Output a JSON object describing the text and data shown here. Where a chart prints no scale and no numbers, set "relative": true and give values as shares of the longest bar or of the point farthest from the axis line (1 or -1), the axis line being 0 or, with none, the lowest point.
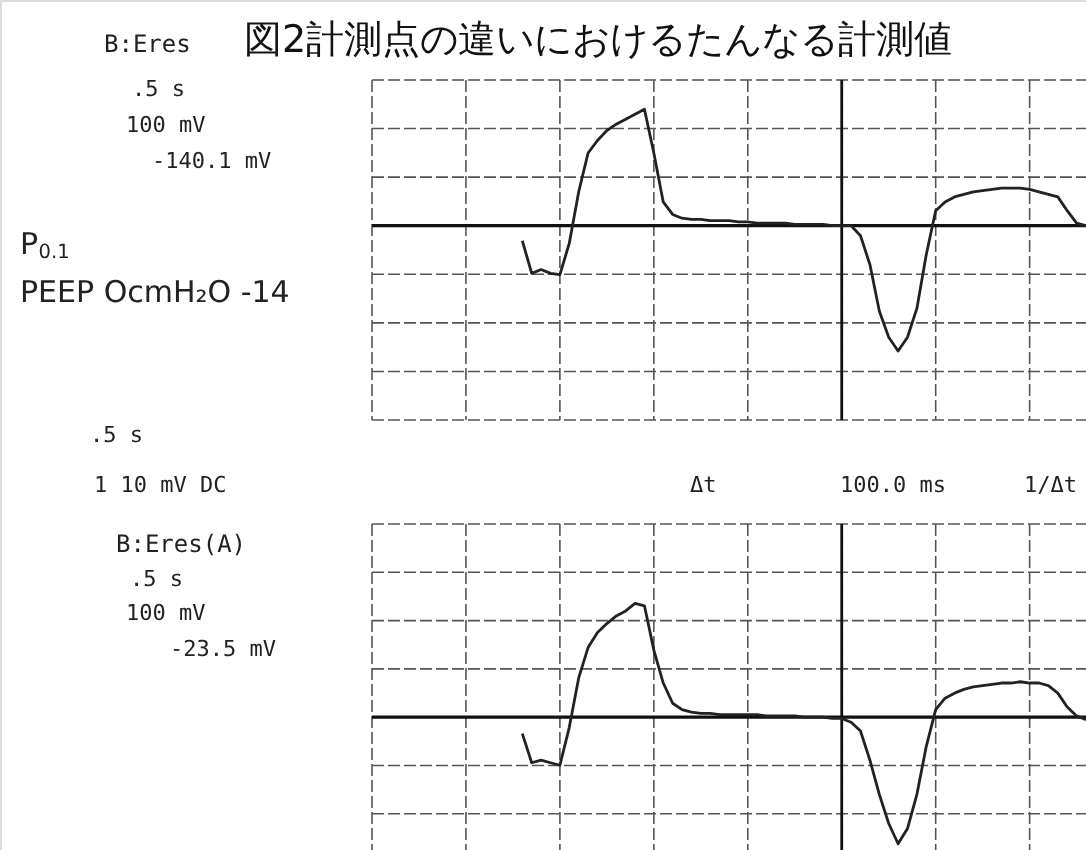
{
  "chart_data": [
    {
      "type": "line",
      "title": "図2計測点の違いにおけるたんなる計測値",
      "relative": true,
      "grid": true,
      "annotations": [
        "B:Eres",
        ".5 s",
        "100 mV",
        "-140.1 mV",
        "P$_{0.1}$",
        "PEEP OcmH₂O -14",
        ".5 s",
        "1  10 mV  DC",
        "Δt",
        "100.0 ms",
        "1/Δt"
      ],
      "categories": [
        null,
        null,
        null,
        null,
        null,
        null,
        null,
        null,
        null,
        null,
        null,
        null,
        null,
        null,
        null,
        null,
        null,
        null,
        null,
        null,
        null,
        null,
        null,
        null,
        null,
        null,
        null,
        null,
        null,
        null,
        null,
        null,
        null,
        null,
        null,
        null,
        null,
        null,
        null,
        null,
        null,
        null,
        null,
        null,
        null,
        null,
        null,
        null,
        null,
        null,
        null,
        null,
        null,
        null,
        null,
        null,
        null,
        null,
        null,
        null,
        null,
        null,
        null,
        null,
        null,
        null,
        null,
        null,
        null,
        null,
        null,
        null,
        null,
        null,
        null,
        null,
        null
      ],
      "series": [
        {
          "color": "#222222",
          "values": [
            null,
            null,
            null,
            null,
            null,
            null,
            null,
            null,
            null,
            null,
            null,
            null,
            null,
            null,
            null,
            null,
            -0.12,
            -0.38,
            -0.35,
            -0.38,
            -0.39,
            -0.14,
            0.27,
            0.58,
            0.68,
            0.76,
            0.81,
            0.85,
            0.89,
            0.93,
            0.58,
            0.19,
            0.09,
            0.06,
            0.05,
            0.05,
            0.04,
            0.04,
            0.04,
            0.03,
            0.03,
            0.02,
            0.02,
            0.02,
            0.02,
            0.01,
            0.01,
            0.01,
            0.01,
            0,
            0,
            0,
            -0.08,
            -0.31,
            -0.68,
            -0.89,
            -1,
            -0.89,
            -0.66,
            -0.23,
            0.12,
            0.19,
            0.23,
            0.25,
            0.27,
            0.28,
            0.29,
            0.3,
            0.3,
            0.3,
            0.29,
            0.27,
            0.25,
            0.23,
            0.12,
            0.02,
            0
          ]
        }
      ]
    },
    {
      "type": "line",
      "relative": true,
      "grid": true,
      "annotations": [
        "B:Eres(A)",
        ".5 s",
        "100 mV",
        "-23.5 mV"
      ],
      "categories": [
        null,
        null,
        null,
        null,
        null,
        null,
        null,
        null,
        null,
        null,
        null,
        null,
        null,
        null,
        null,
        null,
        null,
        null,
        null,
        null,
        null,
        null,
        null,
        null,
        null,
        null,
        null,
        null,
        null,
        null,
        null,
        null,
        null,
        null,
        null,
        null,
        null,
        null,
        null,
        null,
        null,
        null,
        null,
        null,
        null,
        null,
        null,
        null,
        null,
        null,
        null,
        null,
        null,
        null,
        null,
        null,
        null,
        null,
        null,
        null,
        null,
        null,
        null,
        null,
        null,
        null,
        null,
        null,
        null,
        null,
        null,
        null,
        null,
        null,
        null,
        null,
        null
      ],
      "series": [
        {
          "color": "#222222",
          "values": [
            null,
            null,
            null,
            null,
            null,
            null,
            null,
            null,
            null,
            null,
            null,
            null,
            null,
            null,
            null,
            null,
            -0.13,
            -0.36,
            -0.34,
            -0.36,
            -0.38,
            -0.08,
            0.31,
            0.55,
            0.67,
            0.74,
            0.8,
            0.84,
            0.9,
            0.88,
            0.53,
            0.27,
            0.11,
            0.06,
            0.04,
            0.03,
            0.03,
            0.02,
            0.02,
            0.02,
            0.02,
            0.02,
            0.01,
            0.01,
            0.01,
            0.01,
            0,
            0,
            0,
            -0.01,
            -0.01,
            -0.04,
            -0.11,
            -0.34,
            -0.61,
            -0.84,
            -1,
            -0.88,
            -0.61,
            -0.23,
            0.06,
            0.15,
            0.19,
            0.22,
            0.24,
            0.25,
            0.26,
            0.27,
            0.27,
            0.28,
            0.27,
            0.27,
            0.25,
            0.19,
            0.08,
            0.01,
            -0.02
          ]
        }
      ]
    }
  ]
}
